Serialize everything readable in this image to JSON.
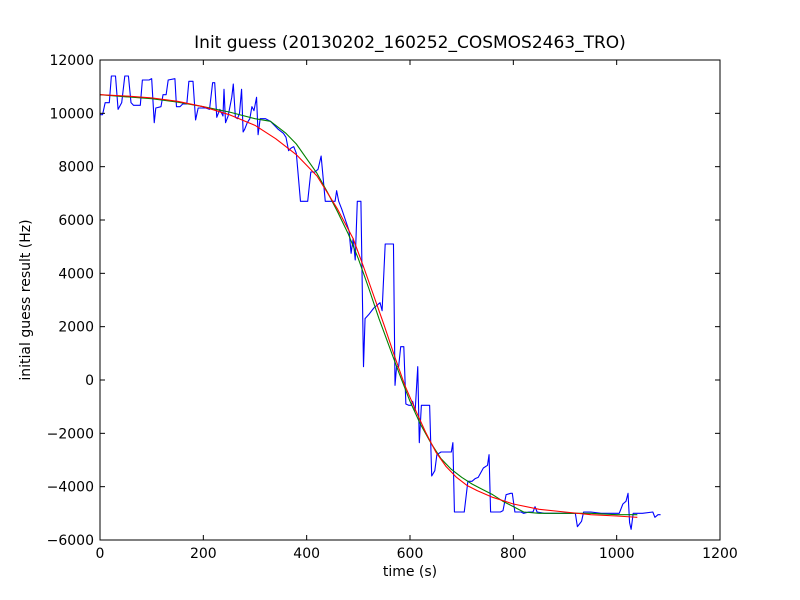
{
  "chart_data": {
    "type": "line",
    "title": "Init guess (20130202_160252_COSMOS2463_TRO)",
    "xlabel": "time (s)",
    "ylabel": "initial guess result (Hz)",
    "xlim": [
      0,
      1200
    ],
    "ylim": [
      -6000,
      12000
    ],
    "xticks": [
      0,
      200,
      400,
      600,
      800,
      1000,
      1200
    ],
    "yticks": [
      -6000,
      -4000,
      -2000,
      0,
      2000,
      4000,
      6000,
      8000,
      10000,
      12000
    ],
    "grid": false,
    "series": [
      {
        "color": "#0000ff",
        "points": [
          [
            0,
            9950
          ],
          [
            5,
            9950
          ],
          [
            10,
            10400
          ],
          [
            18,
            10400
          ],
          [
            22,
            11400
          ],
          [
            30,
            11400
          ],
          [
            35,
            10150
          ],
          [
            42,
            10400
          ],
          [
            48,
            11400
          ],
          [
            55,
            11400
          ],
          [
            60,
            10400
          ],
          [
            65,
            10300
          ],
          [
            72,
            10300
          ],
          [
            78,
            10300
          ],
          [
            82,
            11250
          ],
          [
            95,
            11250
          ],
          [
            100,
            11300
          ],
          [
            105,
            9650
          ],
          [
            108,
            10200
          ],
          [
            118,
            10250
          ],
          [
            122,
            10700
          ],
          [
            128,
            10700
          ],
          [
            132,
            11250
          ],
          [
            145,
            11300
          ],
          [
            148,
            10250
          ],
          [
            155,
            10250
          ],
          [
            160,
            10350
          ],
          [
            168,
            10350
          ],
          [
            172,
            11200
          ],
          [
            180,
            11200
          ],
          [
            185,
            9750
          ],
          [
            190,
            10200
          ],
          [
            205,
            10200
          ],
          [
            212,
            10150
          ],
          [
            218,
            11150
          ],
          [
            222,
            11150
          ],
          [
            226,
            9850
          ],
          [
            232,
            10150
          ],
          [
            238,
            9900
          ],
          [
            240,
            10900
          ],
          [
            243,
            9650
          ],
          [
            248,
            9900
          ],
          [
            255,
            10600
          ],
          [
            258,
            11100
          ],
          [
            262,
            9850
          ],
          [
            266,
            9800
          ],
          [
            270,
            10000
          ],
          [
            274,
            10900
          ],
          [
            277,
            9300
          ],
          [
            280,
            9400
          ],
          [
            285,
            9650
          ],
          [
            290,
            9800
          ],
          [
            294,
            10250
          ],
          [
            298,
            10100
          ],
          [
            303,
            10600
          ],
          [
            306,
            9200
          ],
          [
            310,
            9800
          ],
          [
            320,
            9800
          ],
          [
            330,
            9700
          ],
          [
            345,
            9400
          ],
          [
            355,
            9250
          ],
          [
            360,
            9100
          ],
          [
            365,
            8600
          ],
          [
            370,
            8700
          ],
          [
            375,
            8750
          ],
          [
            380,
            8500
          ],
          [
            388,
            6700
          ],
          [
            398,
            6700
          ],
          [
            402,
            6700
          ],
          [
            408,
            7800
          ],
          [
            416,
            7800
          ],
          [
            422,
            7900
          ],
          [
            428,
            8400
          ],
          [
            436,
            6700
          ],
          [
            448,
            6700
          ],
          [
            455,
            6700
          ],
          [
            458,
            7100
          ],
          [
            462,
            6700
          ],
          [
            468,
            6400
          ],
          [
            475,
            6000
          ],
          [
            482,
            5600
          ],
          [
            486,
            4750
          ],
          [
            490,
            5300
          ],
          [
            494,
            4500
          ],
          [
            498,
            6700
          ],
          [
            505,
            6700
          ],
          [
            510,
            500
          ],
          [
            513,
            2300
          ],
          [
            520,
            2450
          ],
          [
            530,
            2700
          ],
          [
            542,
            2900
          ],
          [
            546,
            2600
          ],
          [
            552,
            5100
          ],
          [
            568,
            5100
          ],
          [
            571,
            -200
          ],
          [
            574,
            500
          ],
          [
            578,
            500
          ],
          [
            582,
            1250
          ],
          [
            588,
            1250
          ],
          [
            592,
            -900
          ],
          [
            598,
            -950
          ],
          [
            602,
            -950
          ],
          [
            605,
            -800
          ],
          [
            610,
            -1150
          ],
          [
            615,
            500
          ],
          [
            618,
            -2350
          ],
          [
            622,
            -950
          ],
          [
            635,
            -950
          ],
          [
            638,
            -950
          ],
          [
            642,
            -3600
          ],
          [
            648,
            -3400
          ],
          [
            652,
            -2800
          ],
          [
            660,
            -2700
          ],
          [
            675,
            -2700
          ],
          [
            680,
            -2700
          ],
          [
            683,
            -2350
          ],
          [
            686,
            -4950
          ],
          [
            700,
            -4950
          ],
          [
            705,
            -4950
          ],
          [
            712,
            -3800
          ],
          [
            720,
            -3800
          ],
          [
            726,
            -3700
          ],
          [
            732,
            -3650
          ],
          [
            742,
            -3300
          ],
          [
            750,
            -3200
          ],
          [
            753,
            -2800
          ],
          [
            756,
            -4950
          ],
          [
            775,
            -4950
          ],
          [
            780,
            -4900
          ],
          [
            786,
            -4300
          ],
          [
            795,
            -4250
          ],
          [
            798,
            -4250
          ],
          [
            803,
            -4950
          ],
          [
            815,
            -4950
          ],
          [
            820,
            -5000
          ],
          [
            830,
            -4950
          ],
          [
            838,
            -4950
          ],
          [
            842,
            -4750
          ],
          [
            846,
            -4950
          ],
          [
            860,
            -5000
          ],
          [
            880,
            -5000
          ],
          [
            900,
            -5000
          ],
          [
            915,
            -5000
          ],
          [
            920,
            -5000
          ],
          [
            924,
            -5500
          ],
          [
            928,
            -5400
          ],
          [
            932,
            -5300
          ],
          [
            936,
            -4950
          ],
          [
            950,
            -4950
          ],
          [
            970,
            -5000
          ],
          [
            990,
            -5000
          ],
          [
            1005,
            -5000
          ],
          [
            1012,
            -4650
          ],
          [
            1018,
            -4550
          ],
          [
            1022,
            -4250
          ],
          [
            1025,
            -5350
          ],
          [
            1028,
            -5600
          ],
          [
            1032,
            -5000
          ],
          [
            1050,
            -5000
          ],
          [
            1070,
            -4950
          ],
          [
            1074,
            -5150
          ],
          [
            1080,
            -5050
          ],
          [
            1085,
            -5050
          ]
        ]
      },
      {
        "color": "#008000",
        "points": [
          [
            0,
            10700
          ],
          [
            50,
            10620
          ],
          [
            100,
            10550
          ],
          [
            150,
            10420
          ],
          [
            200,
            10250
          ],
          [
            250,
            10050
          ],
          [
            300,
            9800
          ],
          [
            330,
            9700
          ],
          [
            360,
            9250
          ],
          [
            380,
            8850
          ],
          [
            400,
            8300
          ],
          [
            420,
            7750
          ],
          [
            440,
            7050
          ],
          [
            460,
            6300
          ],
          [
            480,
            5500
          ],
          [
            500,
            4550
          ],
          [
            520,
            3450
          ],
          [
            540,
            2300
          ],
          [
            560,
            1250
          ],
          [
            580,
            200
          ],
          [
            600,
            -800
          ],
          [
            620,
            -1650
          ],
          [
            640,
            -2350
          ],
          [
            660,
            -2950
          ],
          [
            680,
            -3350
          ],
          [
            700,
            -3650
          ],
          [
            720,
            -3900
          ],
          [
            740,
            -4100
          ],
          [
            760,
            -4300
          ],
          [
            780,
            -4550
          ],
          [
            800,
            -4750
          ],
          [
            820,
            -4950
          ],
          [
            850,
            -5000
          ],
          [
            900,
            -5000
          ],
          [
            950,
            -5000
          ],
          [
            1000,
            -5050
          ],
          [
            1040,
            -5050
          ]
        ]
      },
      {
        "color": "#ff0000",
        "points": [
          [
            0,
            10700
          ],
          [
            50,
            10650
          ],
          [
            100,
            10580
          ],
          [
            150,
            10450
          ],
          [
            200,
            10250
          ],
          [
            250,
            9950
          ],
          [
            300,
            9550
          ],
          [
            340,
            9050
          ],
          [
            380,
            8450
          ],
          [
            420,
            7650
          ],
          [
            460,
            6400
          ],
          [
            490,
            5300
          ],
          [
            510,
            4250
          ],
          [
            530,
            3150
          ],
          [
            550,
            2050
          ],
          [
            570,
            900
          ],
          [
            590,
            -200
          ],
          [
            610,
            -1100
          ],
          [
            630,
            -1950
          ],
          [
            650,
            -2700
          ],
          [
            670,
            -3250
          ],
          [
            690,
            -3650
          ],
          [
            710,
            -3950
          ],
          [
            730,
            -4150
          ],
          [
            760,
            -4400
          ],
          [
            800,
            -4650
          ],
          [
            850,
            -4850
          ],
          [
            900,
            -4950
          ],
          [
            950,
            -5050
          ],
          [
            1000,
            -5100
          ],
          [
            1040,
            -5150
          ]
        ]
      }
    ]
  }
}
